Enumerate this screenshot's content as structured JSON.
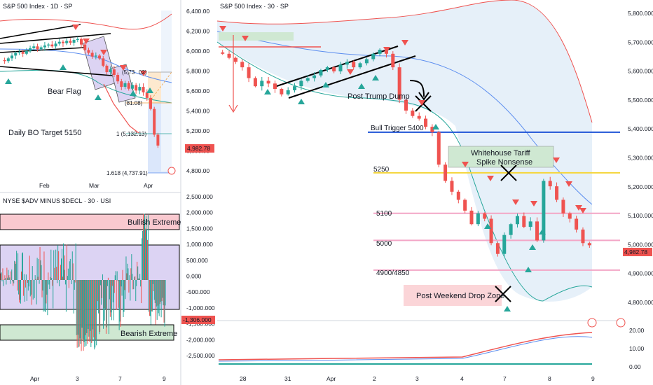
{
  "colors": {
    "up": "#26a69a",
    "down": "#ef5350",
    "blue_line": "#1e53d6",
    "yellow_line": "#f5d63b",
    "pink_line": "#f3a6c6",
    "band_fill": "#dbeaf7",
    "bull_box": "#f9c9cf",
    "bear_box": "#cfe8d2",
    "purple_box": "#dcd3f3",
    "tariff_box": "#cfe8d2",
    "drop_box": "#fbd5d8",
    "price_label": "#ef5350"
  },
  "chart_data": [
    {
      "id": "daily",
      "type": "candlestick",
      "title": "S&P 500 Index · 1D · SP",
      "y_ticks": [
        "6,400.00",
        "6,200.00",
        "6,000.00",
        "5,800.00",
        "5,600.00",
        "5,400.00",
        "5,200.00",
        "5,000.00",
        "4,800.00"
      ],
      "x_ticks": [
        "Feb",
        "Mar",
        "Apr"
      ],
      "ylim": [
        4700,
        6450
      ],
      "annotations": [
        "Bear Flag",
        "Daily BO Target 5150"
      ],
      "fib_labels": [
        "(5,73",
        "02)",
        "(81.08)",
        "1 (5,132.13)",
        "1.618 (4,737.91)"
      ],
      "last_price": "4,982.78",
      "closes": [
        5900,
        5930,
        5960,
        5990,
        6000,
        5980,
        6010,
        6040,
        6060,
        6030,
        6050,
        6070,
        6080,
        6060,
        6090,
        6110,
        6095,
        6120,
        6100,
        6130,
        6140,
        6080,
        6020,
        5990,
        5950,
        5960,
        5930,
        5850,
        5780,
        5810,
        5750,
        5680,
        5620,
        5660,
        5600,
        5640,
        5580,
        5620,
        5560,
        5500,
        5380,
        5100,
        4982
      ]
    },
    {
      "id": "adv_decl",
      "type": "bar",
      "title": "NYSE $ADV MINUS $DECL · 30 · USI",
      "y_ticks": [
        "2,500.000",
        "2,000.000",
        "1,500.000",
        "1,000.000",
        "500.000",
        "0.000",
        "-500.000",
        "-1,000.000",
        "-1,500.000",
        "-2,000.000",
        "-2,500.000"
      ],
      "x_ticks": [
        "Apr",
        "3",
        "7",
        "9"
      ],
      "ylim": [
        -2700,
        2700
      ],
      "annotations": [
        "Bullish Extreme",
        "Bearish Extreme"
      ],
      "last_value": "-1,306.000"
    },
    {
      "id": "intraday",
      "type": "candlestick",
      "title": "S&P 500 Index · 30 · SP",
      "y_ticks": [
        "5,800.000",
        "5,700.000",
        "5,600.000",
        "5,500.000",
        "5,400.000",
        "5,300.000",
        "5,200.000",
        "5,100.000",
        "5,000.000",
        "4,900.000",
        "4,800.000"
      ],
      "x_ticks": [
        "28",
        "31",
        "Apr",
        "2",
        "3",
        "4",
        "7",
        "8",
        "9"
      ],
      "ylim": [
        4750,
        5850
      ],
      "annotations": [
        "Post Trump Dump",
        "Bull Trigger 5400",
        "Whitehouse Tariff",
        "Spike Nonsense",
        "5250",
        "5100",
        "5000",
        "4900/4850",
        "Post Weekend Drop Zone"
      ],
      "levels": [
        5400,
        5250,
        5100,
        5000,
        4890
      ],
      "last_price": "4,982.78",
      "closes": [
        5690,
        5675,
        5660,
        5640,
        5600,
        5570,
        5590,
        5580,
        5560,
        5540,
        5555,
        5570,
        5590,
        5600,
        5610,
        5630,
        5640,
        5625,
        5650,
        5660,
        5640,
        5655,
        5670,
        5690,
        5705,
        5690,
        5640,
        5520,
        5480,
        5460,
        5450,
        5420,
        5400,
        5280,
        5220,
        5180,
        5150,
        5110,
        5060,
        5100,
        5080,
        4990,
        4950,
        5020,
        5060,
        5090,
        5050,
        5070,
        5000,
        5220,
        5200,
        5150,
        5100,
        5080,
        5040,
        4990,
        4982
      ]
    },
    {
      "id": "oscillator",
      "type": "line",
      "y_ticks": [
        "20.00",
        "10.00",
        "0.00"
      ],
      "ylim": [
        0,
        22
      ]
    }
  ]
}
